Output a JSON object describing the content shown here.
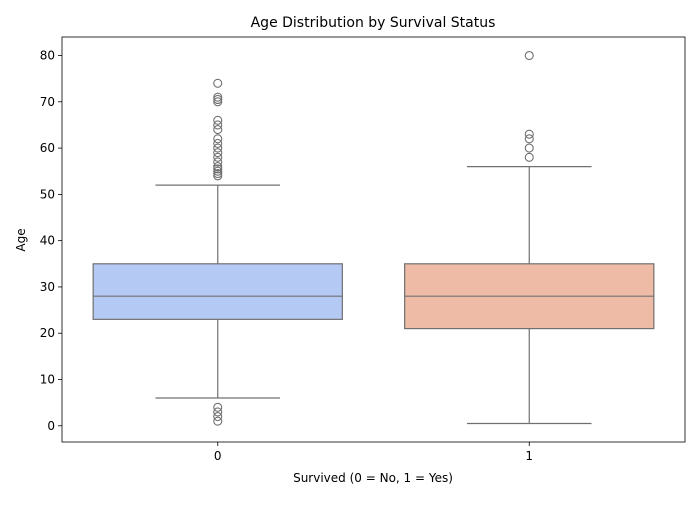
{
  "chart_data": {
    "type": "box",
    "title": "Age Distribution by Survival Status",
    "xlabel": "Survived (0 = No, 1 = Yes)",
    "ylabel": "Age",
    "ylim": [
      -3.5,
      84
    ],
    "yticks": [
      0,
      10,
      20,
      30,
      40,
      50,
      60,
      70,
      80
    ],
    "grid": false,
    "legend": "none",
    "categories": [
      "0",
      "1"
    ],
    "boxes": [
      {
        "category": "0",
        "color": "#b5c9f5",
        "whisker_low": 6,
        "q1": 23,
        "median": 28,
        "q3": 35,
        "whisker_high": 52,
        "outliers": [
          74,
          71,
          70.5,
          70,
          66,
          65,
          64,
          62,
          61,
          60,
          59,
          58,
          57,
          56,
          55.5,
          55,
          54.5,
          54,
          4,
          3,
          2,
          1
        ]
      },
      {
        "category": "1",
        "color": "#eebca6",
        "whisker_low": 0.5,
        "q1": 21,
        "median": 28,
        "q3": 35,
        "whisker_high": 56,
        "outliers": [
          80,
          63,
          62,
          60,
          58
        ]
      }
    ],
    "line_color": "#707070",
    "outlier_edge_color": "#707070"
  }
}
